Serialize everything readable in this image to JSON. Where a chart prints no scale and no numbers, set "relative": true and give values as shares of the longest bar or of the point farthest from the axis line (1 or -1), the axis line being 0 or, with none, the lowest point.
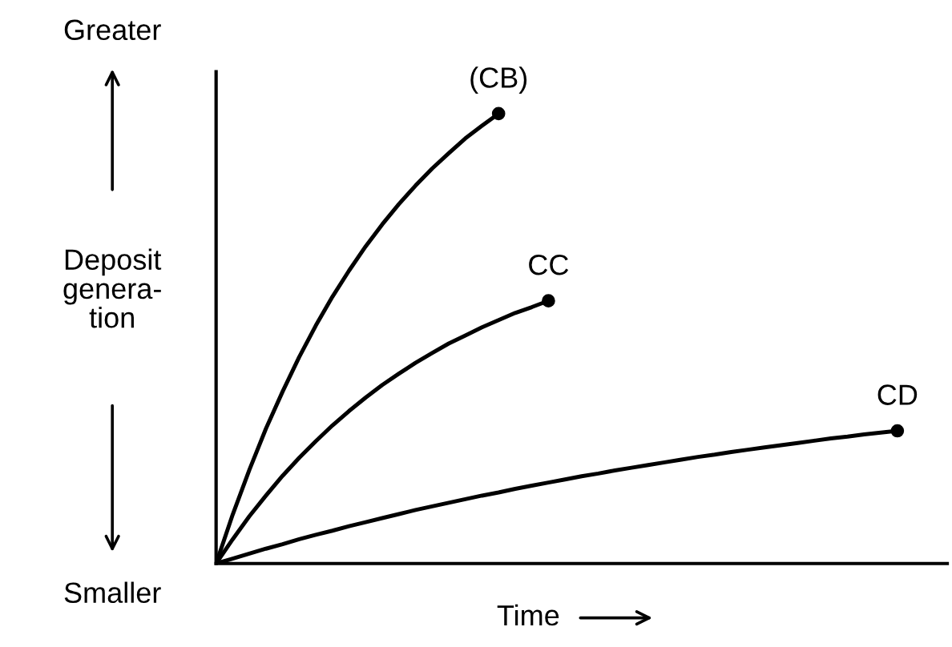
{
  "chart_data": {
    "type": "line",
    "relative": true,
    "xlabel": "Time",
    "ylabel": "Deposit\ngenera-\ntion",
    "annotations": [
      "Greater",
      "Smaller"
    ],
    "legend": false,
    "line_style": "solid",
    "categories": [
      null,
      null,
      null,
      null,
      null,
      null,
      null,
      null,
      null,
      null,
      null,
      null,
      null,
      null,
      null,
      null,
      null,
      null,
      null,
      null,
      null,
      null,
      null,
      null,
      null,
      null,
      null,
      null,
      null,
      null,
      null,
      null,
      null,
      null,
      null,
      null,
      null,
      null,
      null,
      null,
      null,
      null,
      null,
      null,
      null
    ],
    "series": [
      {
        "name": "(CB)",
        "color": "#000000",
        "values": [
          0,
          0.109,
          0.208,
          0.3,
          0.382,
          0.459,
          0.529,
          0.593,
          0.651,
          0.705,
          0.754,
          0.799,
          0.84,
          0.878,
          0.912,
          0.945,
          0.973,
          1,
          null,
          null,
          null,
          null,
          null,
          null,
          null,
          null,
          null,
          null,
          null,
          null,
          null,
          null,
          null,
          null,
          null,
          null,
          null,
          null,
          null,
          null,
          null,
          null,
          null,
          null,
          null
        ]
      },
      {
        "name": "CC",
        "color": "#000000",
        "values": [
          0,
          0.054,
          0.105,
          0.151,
          0.195,
          0.235,
          0.272,
          0.307,
          0.339,
          0.369,
          0.397,
          0.422,
          0.446,
          0.468,
          0.489,
          0.507,
          0.525,
          0.541,
          0.557,
          0.57,
          0.584,
          null,
          null,
          null,
          null,
          null,
          null,
          null,
          null,
          null,
          null,
          null,
          null,
          null,
          null,
          null,
          null,
          null,
          null,
          null,
          null,
          null,
          null,
          null,
          null
        ]
      },
      {
        "name": "CD",
        "color": "#000000",
        "values": [
          0,
          0.011,
          0.022,
          0.033,
          0.043,
          0.054,
          0.064,
          0.073,
          0.083,
          0.092,
          0.101,
          0.11,
          0.119,
          0.127,
          0.135,
          0.143,
          0.151,
          0.158,
          0.166,
          0.173,
          0.18,
          0.187,
          0.194,
          0.2,
          0.207,
          0.213,
          0.219,
          0.225,
          0.231,
          0.237,
          0.242,
          0.248,
          0.253,
          0.258,
          0.263,
          0.268,
          0.273,
          0.278,
          0.282,
          0.287,
          0.291,
          0.295,
          null,
          null,
          null
        ]
      }
    ]
  }
}
